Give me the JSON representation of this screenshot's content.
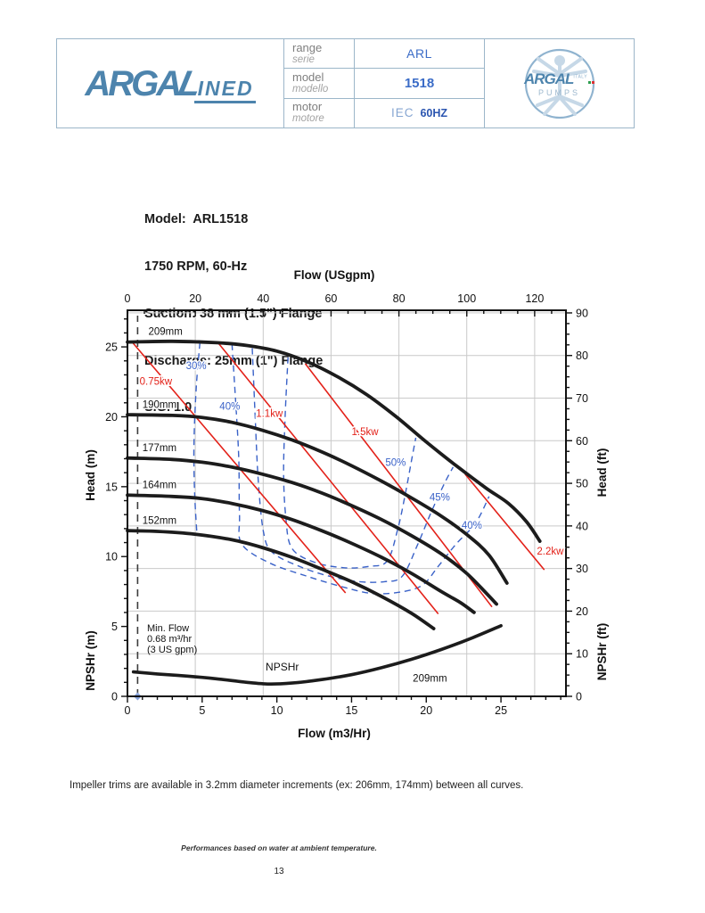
{
  "header": {
    "brand": {
      "part1": "ARGA",
      "part2": "L",
      "part3": "INED"
    },
    "rows": [
      {
        "label": "range",
        "label_it": "serie",
        "value": "ARL",
        "value2": ""
      },
      {
        "label": "model",
        "label_it": "modello",
        "value": "1518",
        "value2": ""
      },
      {
        "label": "motor",
        "label_it": "motore",
        "value": "IEC",
        "value2": "60HZ"
      }
    ],
    "logo_right": {
      "brand": "ARGAL",
      "country": "ITALY",
      "sub": "PUMPS"
    }
  },
  "model_info": {
    "lines": [
      "Model:  ARL1518",
      "1750 RPM, 60-Hz",
      "Suction: 38 mm (1.5\") Flange",
      "Discharge: 25mm (1\") Flange",
      "S.G. 1.0"
    ]
  },
  "chart_data": {
    "type": "line",
    "title_top": "Flow (USgpm)",
    "xlabel_bottom": "Flow (m3/Hr)",
    "ylabel_head_m": "Head (m)",
    "ylabel_npshr_m": "NPSHr (m)",
    "ylabel_head_ft": "Head (ft)",
    "ylabel_npshr_ft": "NPSHr (ft)",
    "axes": {
      "x_bottom": {
        "unit": "m3/Hr",
        "min": 0,
        "max": 29.35,
        "major_ticks": [
          0,
          5,
          10,
          15,
          20,
          25
        ],
        "minor_step": 1
      },
      "x_top": {
        "unit": "USgpm",
        "major_ticks": [
          0,
          20,
          40,
          60,
          80,
          100,
          120
        ],
        "minor_step": 5,
        "gpm_to_m3hr": 0.227124
      },
      "y_left": {
        "unit": "m",
        "min": 0,
        "max": 27.62,
        "major_ticks": [
          0,
          5,
          10,
          15,
          20,
          25
        ],
        "minor_step": 1
      },
      "y_right": {
        "unit": "ft",
        "major_ticks": [
          0,
          10,
          20,
          30,
          40,
          50,
          60,
          70,
          80,
          90
        ],
        "minor_step": 2.5,
        "ft_to_m": 0.3048
      },
      "grid_vertical_at_gpm": [
        20,
        40,
        60,
        80,
        100,
        120
      ],
      "grid_horizontal_at_ft": [
        10,
        20,
        30,
        40,
        50,
        60,
        70,
        80,
        90
      ]
    },
    "head_curves": [
      {
        "label": "209mm",
        "label_pos": [
          1.4,
          25.85
        ],
        "points": [
          [
            0,
            25.35
          ],
          [
            3,
            25.4
          ],
          [
            6,
            25.3
          ],
          [
            8,
            25.1
          ],
          [
            10,
            24.7
          ],
          [
            12,
            23.95
          ],
          [
            14,
            22.9
          ],
          [
            16,
            21.6
          ],
          [
            18,
            20.0
          ],
          [
            20,
            18.2
          ],
          [
            22,
            16.5
          ],
          [
            24,
            14.9
          ],
          [
            25.5,
            13.8
          ],
          [
            26.7,
            12.5
          ],
          [
            27.6,
            11.1
          ]
        ]
      },
      {
        "label": "190mm",
        "label_pos": [
          1.0,
          20.65
        ],
        "points": [
          [
            0,
            20.15
          ],
          [
            3,
            20.1
          ],
          [
            5,
            19.95
          ],
          [
            7,
            19.6
          ],
          [
            9,
            19.05
          ],
          [
            11,
            18.35
          ],
          [
            13,
            17.5
          ],
          [
            15,
            16.5
          ],
          [
            17,
            15.4
          ],
          [
            19,
            14.2
          ],
          [
            21,
            12.9
          ],
          [
            22.8,
            11.5
          ],
          [
            24.2,
            10.1
          ],
          [
            25.4,
            8.1
          ]
        ]
      },
      {
        "label": "177mm",
        "label_pos": [
          1.0,
          17.55
        ],
        "points": [
          [
            0,
            17.05
          ],
          [
            3,
            16.95
          ],
          [
            5,
            16.75
          ],
          [
            7,
            16.4
          ],
          [
            9,
            15.9
          ],
          [
            11,
            15.3
          ],
          [
            13,
            14.55
          ],
          [
            15,
            13.65
          ],
          [
            17,
            12.65
          ],
          [
            19,
            11.5
          ],
          [
            21,
            10.2
          ],
          [
            22.7,
            8.8
          ],
          [
            24.0,
            7.4
          ],
          [
            24.7,
            6.6
          ]
        ]
      },
      {
        "label": "164mm",
        "label_pos": [
          1.0,
          14.9
        ],
        "points": [
          [
            0,
            14.4
          ],
          [
            3,
            14.3
          ],
          [
            5,
            14.15
          ],
          [
            7,
            13.8
          ],
          [
            9,
            13.3
          ],
          [
            11,
            12.65
          ],
          [
            13,
            11.85
          ],
          [
            15,
            10.95
          ],
          [
            17,
            9.95
          ],
          [
            19,
            8.8
          ],
          [
            21,
            7.5
          ],
          [
            22.3,
            6.7
          ],
          [
            23.2,
            6.0
          ]
        ]
      },
      {
        "label": "152mm",
        "label_pos": [
          1.0,
          12.35
        ],
        "points": [
          [
            0,
            11.85
          ],
          [
            2,
            11.8
          ],
          [
            4.5,
            11.6
          ],
          [
            7,
            11.2
          ],
          [
            9,
            10.65
          ],
          [
            11,
            9.95
          ],
          [
            13,
            9.1
          ],
          [
            15,
            8.2
          ],
          [
            17,
            7.15
          ],
          [
            19,
            5.95
          ],
          [
            20.5,
            4.85
          ]
        ]
      }
    ],
    "power_lines": [
      {
        "label": "0.75kw",
        "label_pos": [
          1.9,
          22.3
        ],
        "points": [
          [
            0.35,
            25.3
          ],
          [
            14.6,
            7.4
          ]
        ]
      },
      {
        "label": "1.1kw",
        "label_pos": [
          9.5,
          20.0
        ],
        "points": [
          [
            6.1,
            25.25
          ],
          [
            20.8,
            5.9
          ]
        ]
      },
      {
        "label": "1.5kw",
        "label_pos": [
          15.9,
          18.7
        ],
        "points": [
          [
            11.9,
            23.8
          ],
          [
            24.4,
            6.4
          ]
        ]
      },
      {
        "label": "2.2kw",
        "label_pos": [
          28.3,
          10.15
        ],
        "points": [
          [
            22.6,
            15.9
          ],
          [
            27.9,
            9.05
          ]
        ]
      }
    ],
    "efficiency_curves": [
      {
        "name": "30%",
        "points": [
          [
            4.85,
            25.3
          ],
          [
            4.6,
            22
          ],
          [
            4.45,
            18
          ],
          [
            4.5,
            14.5
          ],
          [
            4.65,
            11.65
          ]
        ]
      },
      {
        "name": "40%",
        "points": [
          [
            7.0,
            25.2
          ],
          [
            7.25,
            21
          ],
          [
            7.45,
            17
          ],
          [
            7.5,
            13
          ],
          [
            7.65,
            10.9
          ],
          [
            9.5,
            9.55
          ],
          [
            12,
            8.6
          ],
          [
            14.5,
            7.8
          ],
          [
            16.5,
            7.35
          ],
          [
            18.5,
            7.5
          ],
          [
            19.8,
            8.0
          ],
          [
            20.8,
            9.3
          ],
          [
            22.0,
            10.9
          ],
          [
            23.3,
            12.4
          ],
          [
            24.2,
            14.3
          ]
        ]
      },
      {
        "name": "45%",
        "points": [
          [
            8.35,
            24.9
          ],
          [
            8.55,
            20
          ],
          [
            8.75,
            15.5
          ],
          [
            9.1,
            11.8
          ],
          [
            9.7,
            10.3
          ],
          [
            11.5,
            9.3
          ],
          [
            13.5,
            8.6
          ],
          [
            15.5,
            8.2
          ],
          [
            17.2,
            8.2
          ],
          [
            18.4,
            8.6
          ],
          [
            19.4,
            10.8
          ],
          [
            20.3,
            13.1
          ],
          [
            21.2,
            15.2
          ],
          [
            21.8,
            16.4
          ]
        ]
      },
      {
        "name": "50%",
        "points": [
          [
            10.75,
            24.25
          ],
          [
            10.55,
            20
          ],
          [
            10.45,
            16
          ],
          [
            10.6,
            12.8
          ],
          [
            11.0,
            10.6
          ],
          [
            12.5,
            9.6
          ],
          [
            14.5,
            9.2
          ],
          [
            16.2,
            9.3
          ],
          [
            17.4,
            9.7
          ],
          [
            18.1,
            12.0
          ],
          [
            18.6,
            14.5
          ],
          [
            19.0,
            16.8
          ],
          [
            19.3,
            18.5
          ]
        ]
      }
    ],
    "efficiency_labels": [
      {
        "text": "30%",
        "x": 4.6,
        "y": 23.4
      },
      {
        "text": "40%",
        "x": 6.85,
        "y": 20.5
      },
      {
        "text": "50%",
        "x": 17.95,
        "y": 16.5
      },
      {
        "text": "45%",
        "x": 20.9,
        "y": 14.0
      },
      {
        "text": "40%",
        "x": 23.05,
        "y": 12.0
      }
    ],
    "npshr_curve": {
      "label": "NPSHr",
      "label_pos": [
        9.25,
        1.85
      ],
      "impeller_label": "209mm",
      "impeller_label_pos": [
        19.1,
        1.05
      ],
      "points": [
        [
          0.4,
          1.75
        ],
        [
          2,
          1.6
        ],
        [
          4,
          1.45
        ],
        [
          6,
          1.25
        ],
        [
          8,
          1.0
        ],
        [
          9.5,
          0.88
        ],
        [
          11,
          0.95
        ],
        [
          13,
          1.2
        ],
        [
          15,
          1.55
        ],
        [
          17,
          2.05
        ],
        [
          19,
          2.65
        ],
        [
          21,
          3.35
        ],
        [
          23,
          4.15
        ],
        [
          25,
          5.05
        ]
      ]
    },
    "min_flow": {
      "x": 0.68,
      "lines": [
        "Min. Flow",
        "0.68 m³/hr",
        "(3 US gpm)"
      ]
    },
    "colors": {
      "curve": "#1c1c1c",
      "power": "#e32119",
      "efficiency": "#3a62c8",
      "grid": "#c9c9c9",
      "axis": "#111111",
      "min_flow_line": "#3c3c3c",
      "min_flow_marker": "#8aa4da"
    }
  },
  "footer": {
    "note": "Impeller trims are available in 3.2mm diameter increments (ex: 206mm, 174mm) between all curves.",
    "performance_note": "Performances based on water at ambient temperature.",
    "page_number": "13"
  }
}
